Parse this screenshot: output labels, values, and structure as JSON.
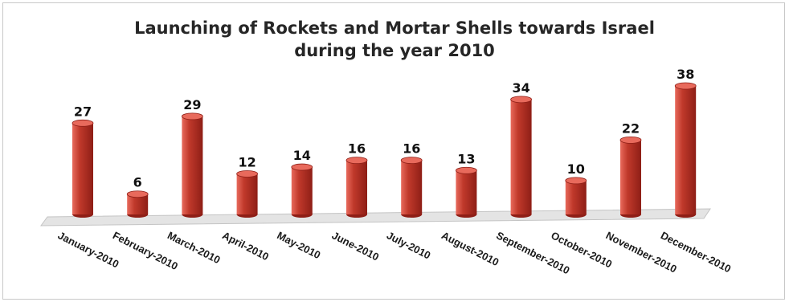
{
  "chart_data": {
    "type": "bar",
    "title_line1": "Launching of Rockets and Mortar Shells towards Israel",
    "title_line2": "during the year 2010",
    "categories": [
      "January-2010",
      "February-2010",
      "March-2010",
      "April-2010",
      "May-2010",
      "June-2010",
      "July-2010",
      "August-2010",
      "September-2010",
      "October-2010",
      "November-2010",
      "December-2010"
    ],
    "values": [
      27,
      6,
      29,
      12,
      14,
      16,
      16,
      13,
      34,
      10,
      22,
      38
    ],
    "data_labels": [
      "27",
      "6",
      "29",
      "12",
      "14",
      "16",
      "16",
      "13",
      "34",
      "10",
      "22",
      "38"
    ],
    "ylim": [
      0,
      38
    ],
    "bar_shape": "cylinder",
    "grid": false,
    "legend": "none",
    "colors": {
      "bar": "#c0392b",
      "bar_dark": "#8e1e16",
      "bar_light": "#e86a5c",
      "floor": "#dcdcdc"
    }
  }
}
